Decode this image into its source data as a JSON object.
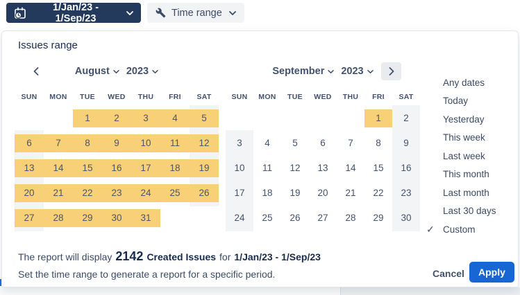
{
  "toolbar": {
    "date_button_label": "1/Jan/23 - 1/Sep/23",
    "time_range_label": "Time range"
  },
  "panel": {
    "title": "Issues range",
    "calendar": {
      "day_headers": [
        "SUN",
        "MON",
        "TUE",
        "WED",
        "THU",
        "FRI",
        "SAT"
      ],
      "months": [
        {
          "name": "August",
          "year": "2023",
          "weeks": [
            [
              null,
              null,
              1,
              2,
              3,
              4,
              5
            ],
            [
              6,
              7,
              8,
              9,
              10,
              11,
              12
            ],
            [
              13,
              14,
              15,
              16,
              17,
              18,
              19
            ],
            [
              20,
              21,
              22,
              23,
              24,
              25,
              26
            ],
            [
              27,
              28,
              29,
              30,
              31,
              null,
              null
            ]
          ],
          "selected": {
            "from": 1,
            "to": 31
          }
        },
        {
          "name": "September",
          "year": "2023",
          "weeks": [
            [
              null,
              null,
              null,
              null,
              null,
              1,
              2
            ],
            [
              3,
              4,
              5,
              6,
              7,
              8,
              9
            ],
            [
              10,
              11,
              12,
              13,
              14,
              15,
              16
            ],
            [
              17,
              18,
              19,
              20,
              21,
              22,
              23
            ],
            [
              24,
              25,
              26,
              27,
              28,
              29,
              30
            ]
          ],
          "selected": {
            "from": 1,
            "to": 1
          }
        }
      ]
    },
    "presets": {
      "check_icon": "✓",
      "items": [
        {
          "label": "Any dates",
          "checked": false
        },
        {
          "label": "Today",
          "checked": false
        },
        {
          "label": "Yesterday",
          "checked": false
        },
        {
          "label": "This week",
          "checked": false
        },
        {
          "label": "Last week",
          "checked": false
        },
        {
          "label": "This month",
          "checked": false
        },
        {
          "label": "Last month",
          "checked": false
        },
        {
          "label": "Last 30 days",
          "checked": false
        },
        {
          "label": "Custom",
          "checked": true
        }
      ]
    },
    "summary": {
      "prefix": "The report will display",
      "count": "2142",
      "metric": "Created Issues",
      "middle": "for",
      "range": "1/Jan/23 - 1/Sep/23",
      "subtitle": "Set the time range to generate a report for a specific period."
    },
    "footer": {
      "cancel_label": "Cancel",
      "apply_label": "Apply"
    }
  },
  "colors": {
    "accent_navy": "#233a5c",
    "selection_yellow": "#f7d077",
    "weekend_gray": "#f3f4f6",
    "apply_blue": "#1766d3"
  }
}
